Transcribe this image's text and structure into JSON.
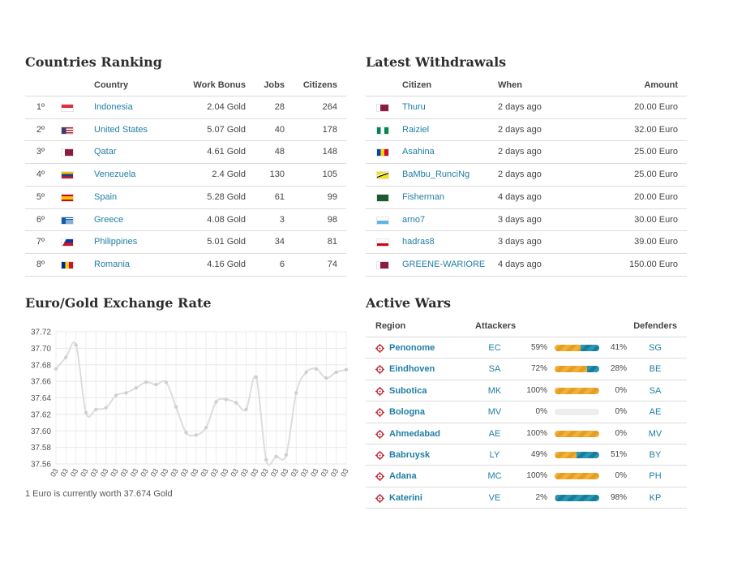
{
  "ranking": {
    "title": "Countries Ranking",
    "headers": {
      "country": "Country",
      "work_bonus": "Work Bonus",
      "jobs": "Jobs",
      "citizens": "Citizens"
    },
    "rows": [
      {
        "rank": "1º",
        "country": "Indonesia",
        "flag": "indonesia-flag-icon",
        "bonus": "2.04 Gold",
        "jobs": "28",
        "citizens": "264"
      },
      {
        "rank": "2º",
        "country": "United States",
        "flag": "usa-flag-icon",
        "bonus": "5.07 Gold",
        "jobs": "40",
        "citizens": "178"
      },
      {
        "rank": "3º",
        "country": "Qatar",
        "flag": "qatar-flag-icon",
        "bonus": "4.61 Gold",
        "jobs": "48",
        "citizens": "148"
      },
      {
        "rank": "4º",
        "country": "Venezuela",
        "flag": "venezuela-flag-icon",
        "bonus": "2.4 Gold",
        "jobs": "130",
        "citizens": "105"
      },
      {
        "rank": "5º",
        "country": "Spain",
        "flag": "spain-flag-icon",
        "bonus": "5.28 Gold",
        "jobs": "61",
        "citizens": "99"
      },
      {
        "rank": "6º",
        "country": "Greece",
        "flag": "greece-flag-icon",
        "bonus": "4.08 Gold",
        "jobs": "3",
        "citizens": "98"
      },
      {
        "rank": "7º",
        "country": "Philippines",
        "flag": "philippines-flag-icon",
        "bonus": "5.01 Gold",
        "jobs": "34",
        "citizens": "81"
      },
      {
        "rank": "8º",
        "country": "Romania",
        "flag": "romania-flag-icon",
        "bonus": "4.16 Gold",
        "jobs": "6",
        "citizens": "74"
      }
    ]
  },
  "withdrawals": {
    "title": "Latest Withdrawals",
    "headers": {
      "citizen": "Citizen",
      "when": "When",
      "amount": "Amount"
    },
    "rows": [
      {
        "citizen": "Thuru",
        "flag": "qatar-flag-icon",
        "when": "2 days ago",
        "amount": "20.00 Euro"
      },
      {
        "citizen": "Raiziel",
        "flag": "nigeria-flag-icon",
        "when": "2 days ago",
        "amount": "32.00 Euro"
      },
      {
        "citizen": "Asahina",
        "flag": "moldova-flag-icon",
        "when": "2 days ago",
        "amount": "25.00 Euro"
      },
      {
        "citizen": "BaMbu_RunciNg",
        "flag": "brunei-flag-icon",
        "when": "2 days ago",
        "amount": "25.00 Euro"
      },
      {
        "citizen": "Fisherman",
        "flag": "green-flag-icon",
        "when": "4 days ago",
        "amount": "20.00 Euro"
      },
      {
        "citizen": "arno7",
        "flag": "san-marino-flag-icon",
        "when": "3 days ago",
        "amount": "30.00 Euro"
      },
      {
        "citizen": "hadras8",
        "flag": "gibraltar-flag-icon",
        "when": "3 days ago",
        "amount": "39.00 Euro"
      },
      {
        "citizen": "GREENE-WARIORE",
        "flag": "qatar-flag-icon",
        "when": "4 days ago",
        "amount": "150.00 Euro"
      }
    ]
  },
  "exchange": {
    "title": "Euro/Gold Exchange Rate",
    "note": "1 Euro is currently worth 37.674 Gold"
  },
  "chart_data": {
    "type": "line",
    "title": "",
    "xlabel": "",
    "ylabel": "",
    "ylim": [
      37.56,
      37.72
    ],
    "yticks": [
      "37.72",
      "37.70",
      "37.68",
      "37.66",
      "37.64",
      "37.62",
      "37.60",
      "37.58",
      "37.56"
    ],
    "x_tick_label": "03",
    "grid": true,
    "color": "#dddddd",
    "values": [
      37.675,
      37.689,
      37.704,
      37.622,
      37.626,
      37.628,
      37.643,
      37.646,
      37.652,
      37.659,
      37.656,
      37.659,
      37.629,
      37.598,
      37.595,
      37.604,
      37.635,
      37.638,
      37.634,
      37.626,
      37.665,
      37.565,
      37.569,
      37.571,
      37.646,
      37.671,
      37.675,
      37.664,
      37.671,
      37.674
    ]
  },
  "wars": {
    "title": "Active Wars",
    "headers": {
      "region": "Region",
      "attackers": "Attackers",
      "defenders": "Defenders"
    },
    "rows": [
      {
        "region": "Penonome",
        "attacker": "EC",
        "att_pct": "59%",
        "att_frac": 0.59,
        "def_pct": "41%",
        "defender": "SG"
      },
      {
        "region": "Eindhoven",
        "attacker": "SA",
        "att_pct": "72%",
        "att_frac": 0.72,
        "def_pct": "28%",
        "defender": "BE"
      },
      {
        "region": "Subotica",
        "attacker": "MK",
        "att_pct": "100%",
        "att_frac": 1.0,
        "def_pct": "0%",
        "defender": "SA"
      },
      {
        "region": "Bologna",
        "attacker": "MV",
        "att_pct": "0%",
        "att_frac": 0.0,
        "def_pct": "0%",
        "defender": "AE"
      },
      {
        "region": "Ahmedabad",
        "attacker": "AE",
        "att_pct": "100%",
        "att_frac": 1.0,
        "def_pct": "0%",
        "defender": "MV"
      },
      {
        "region": "Babruysk",
        "attacker": "LY",
        "att_pct": "49%",
        "att_frac": 0.49,
        "def_pct": "51%",
        "defender": "BY"
      },
      {
        "region": "Adana",
        "attacker": "MC",
        "att_pct": "100%",
        "att_frac": 1.0,
        "def_pct": "0%",
        "defender": "PH"
      },
      {
        "region": "Katerini",
        "attacker": "VE",
        "att_pct": "2%",
        "att_frac": 0.02,
        "def_pct": "98%",
        "defender": "KP"
      }
    ]
  }
}
